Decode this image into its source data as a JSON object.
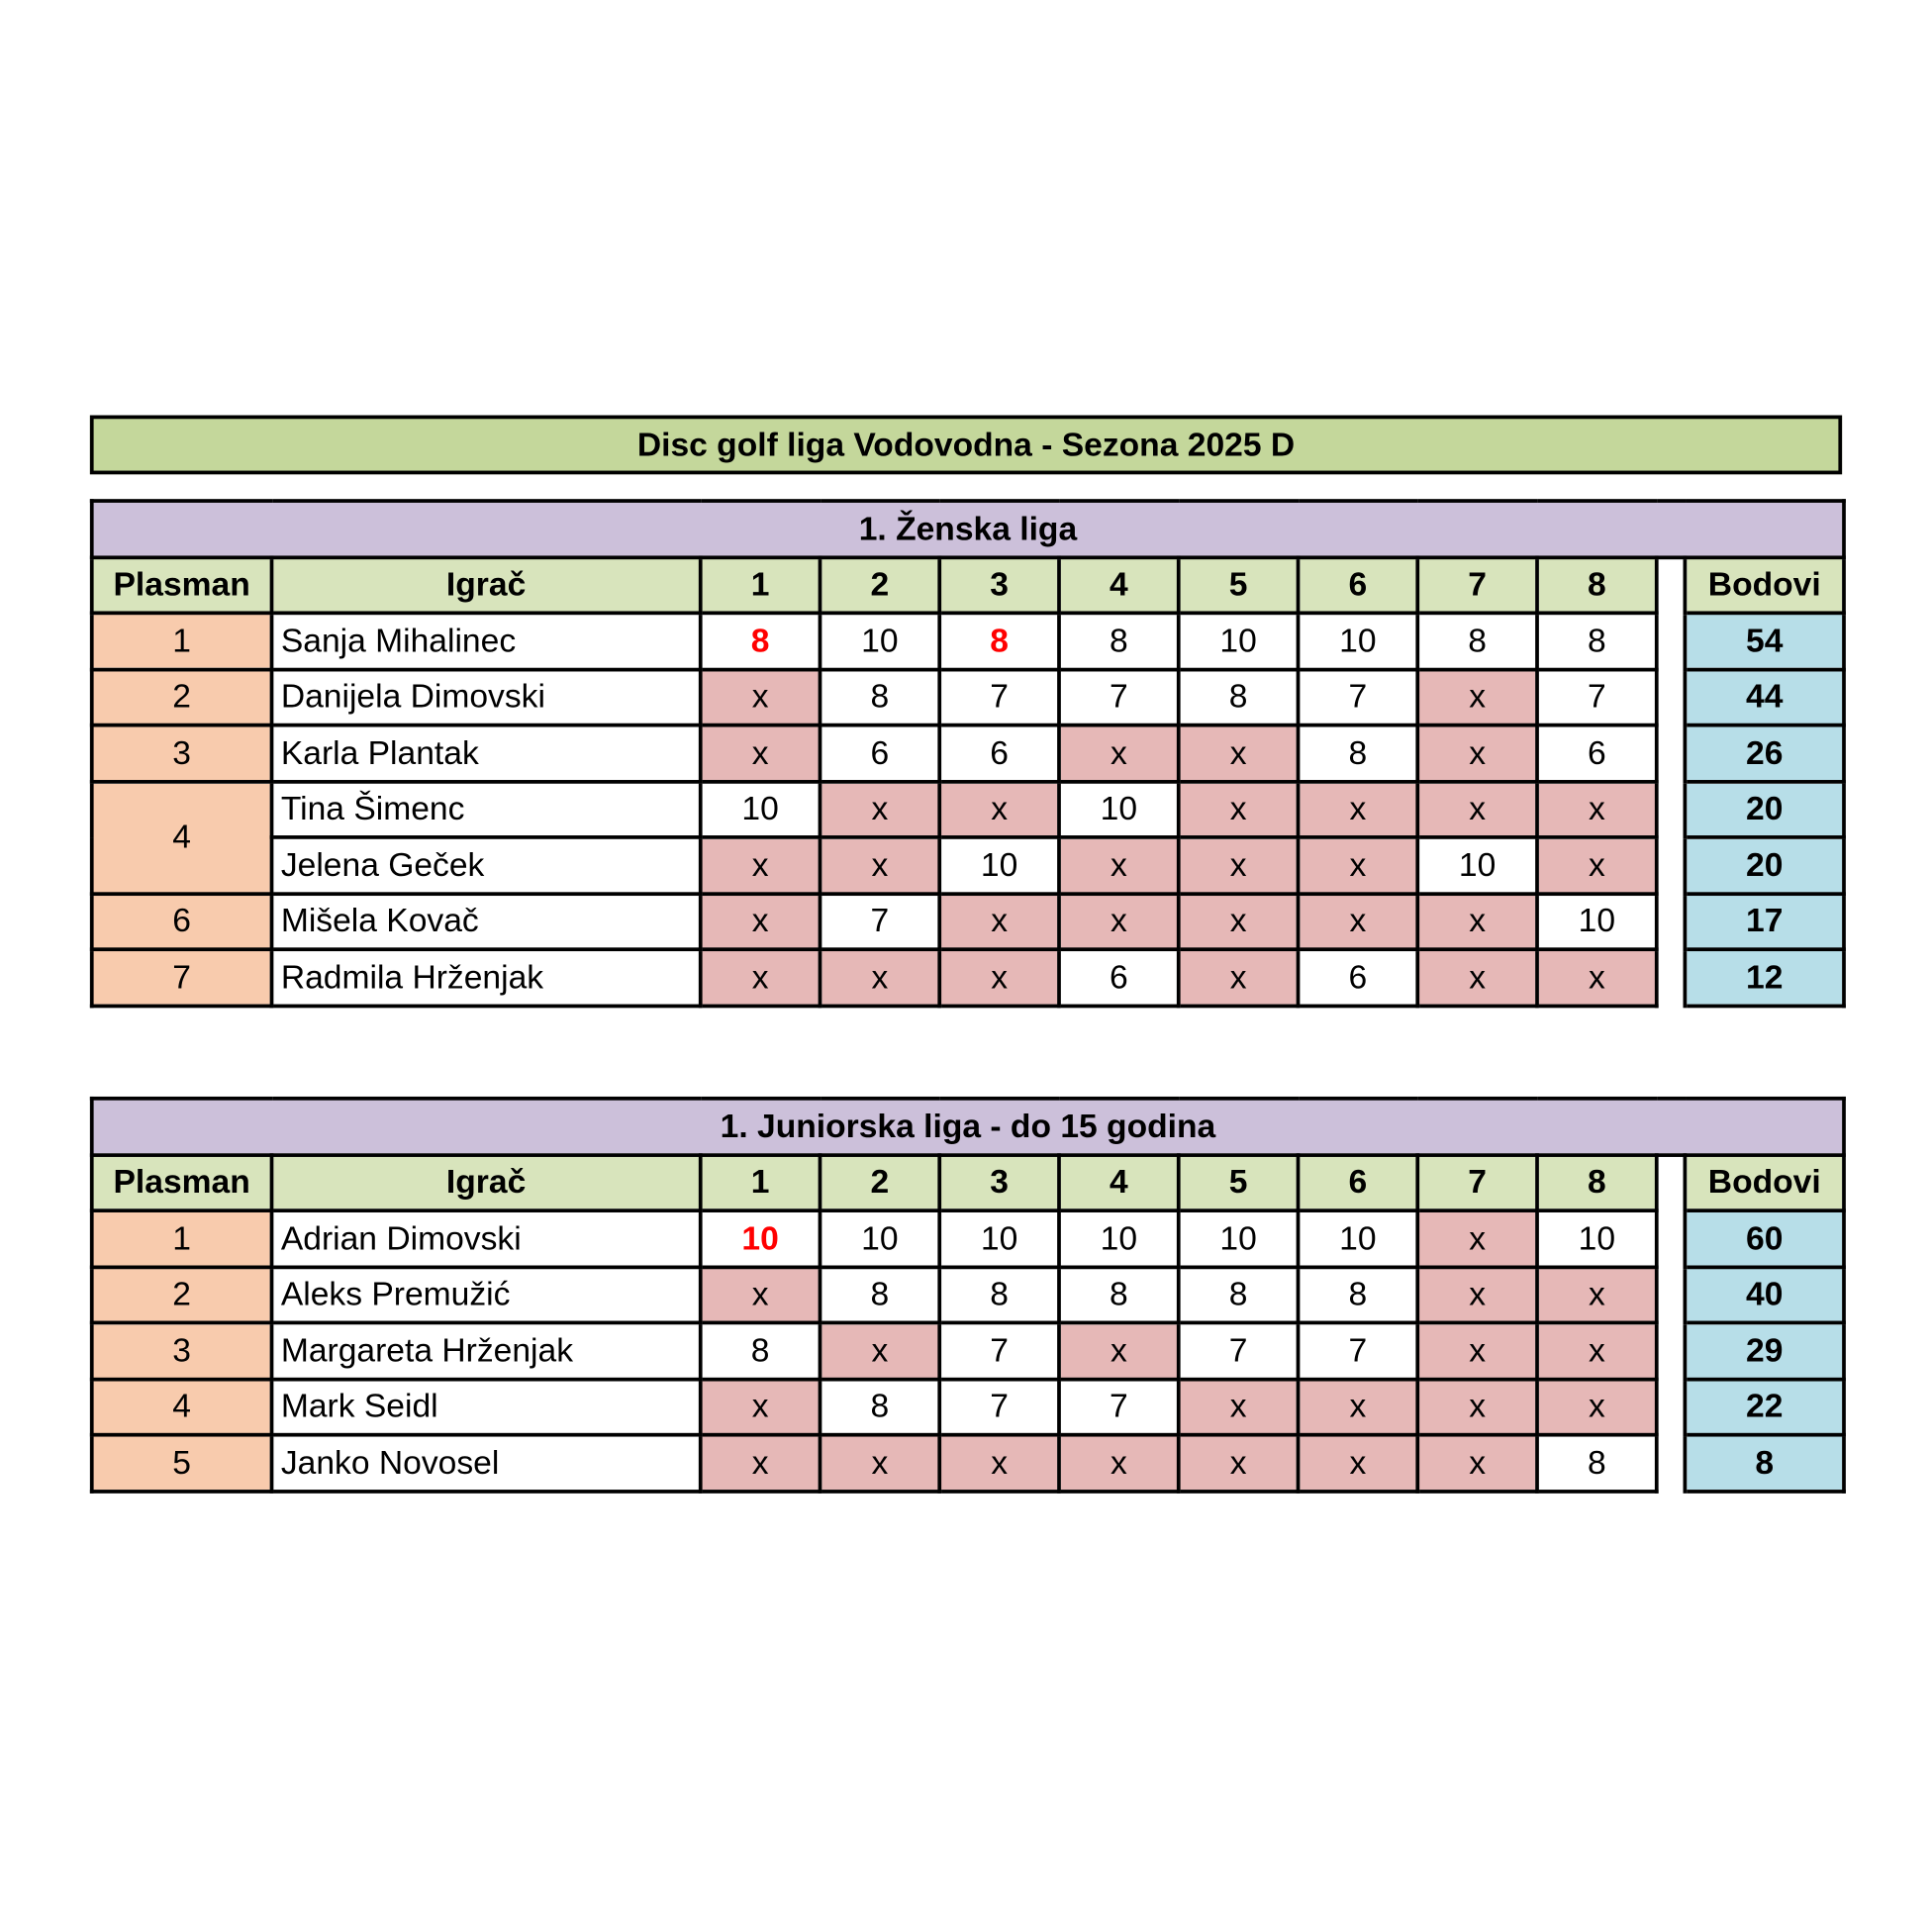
{
  "title": "Disc golf liga Vodovodna - Sezona 2025 D",
  "leagues": [
    {
      "title": "1. Ženska liga",
      "headers": {
        "place": "Plasman",
        "player": "Igrač",
        "rounds": [
          1,
          2,
          3,
          4,
          5,
          6,
          7,
          8
        ],
        "total": "Bodovi"
      },
      "rows": [
        {
          "place": 1,
          "player": "Sanja Mihalinec",
          "scores": [
            {
              "value": 8,
              "color": "#ff0000"
            },
            10,
            {
              "value": 8,
              "color": "#ff0000"
            },
            8,
            10,
            10,
            8,
            8
          ],
          "total": 54
        },
        {
          "place": 2,
          "player": "Danijela Dimovski",
          "scores": [
            "x",
            8,
            7,
            7,
            8,
            7,
            "x",
            7
          ],
          "total": 44
        },
        {
          "place": 3,
          "player": "Karla Plantak",
          "scores": [
            "x",
            6,
            6,
            "x",
            "x",
            8,
            "x",
            6
          ],
          "total": 26
        },
        {
          "place": 4,
          "player": "Tina Šimenc",
          "scores": [
            10,
            "x",
            "x",
            10,
            "x",
            "x",
            "x",
            "x"
          ],
          "total": 20
        },
        {
          "place": null,
          "player": "Jelena Geček",
          "scores": [
            "x",
            "x",
            10,
            "x",
            "x",
            "x",
            10,
            "x"
          ],
          "total": 20
        },
        {
          "place": 6,
          "player": "Mišela Kovač",
          "scores": [
            "x",
            7,
            "x",
            "x",
            "x",
            "x",
            "x",
            10
          ],
          "total": 17
        },
        {
          "place": 7,
          "player": "Radmila Hrženjak",
          "scores": [
            "x",
            "x",
            "x",
            6,
            "x",
            6,
            "x",
            "x"
          ],
          "total": 12
        }
      ]
    },
    {
      "title": "1. Juniorska liga - do 15 godina",
      "headers": {
        "place": "Plasman",
        "player": "Igrač",
        "rounds": [
          1,
          2,
          3,
          4,
          5,
          6,
          7,
          8
        ],
        "total": "Bodovi"
      },
      "rows": [
        {
          "place": 1,
          "player": "Adrian Dimovski",
          "scores": [
            {
              "value": 10,
              "color": "#ff0000"
            },
            10,
            10,
            10,
            10,
            10,
            "x",
            10
          ],
          "total": 60
        },
        {
          "place": 2,
          "player": "Aleks Premužić",
          "scores": [
            "x",
            8,
            8,
            8,
            8,
            8,
            "x",
            "x"
          ],
          "total": 40
        },
        {
          "place": 3,
          "player": "Margareta Hrženjak",
          "scores": [
            8,
            "x",
            7,
            "x",
            7,
            7,
            "x",
            "x"
          ],
          "total": 29
        },
        {
          "place": 4,
          "player": "Mark Seidl",
          "scores": [
            "x",
            8,
            7,
            7,
            "x",
            "x",
            "x",
            "x"
          ],
          "total": 22
        },
        {
          "place": 5,
          "player": "Janko Novosel",
          "scores": [
            "x",
            "x",
            "x",
            "x",
            "x",
            "x",
            "x",
            8
          ],
          "total": 8
        }
      ]
    }
  ]
}
